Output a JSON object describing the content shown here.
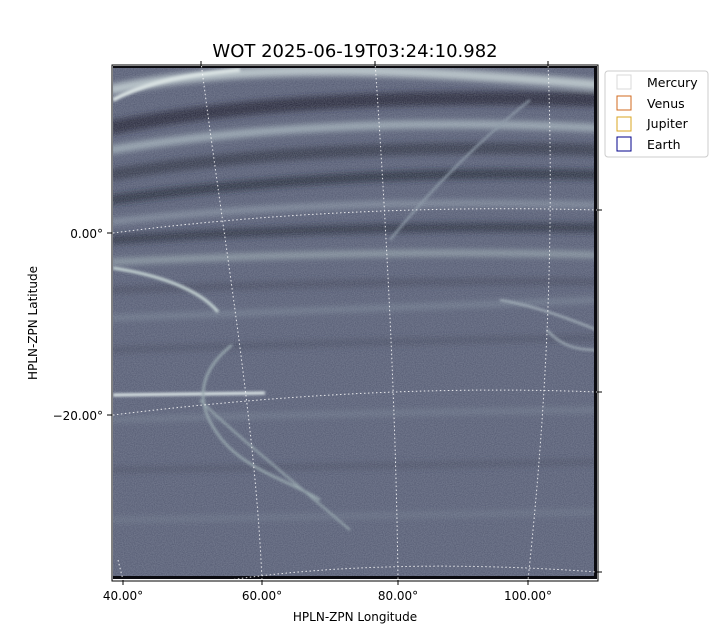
{
  "chart_data": {
    "type": "heatmap",
    "title": "WOT 2025-06-19T03:24:10.982",
    "xlabel": "HPLN-ZPN Longitude",
    "ylabel": "HPLN-ZPN Latitude",
    "x_ticks": [
      "40.00°",
      "60.00°",
      "80.00°",
      "100.00°"
    ],
    "y_ticks": [
      "0.00°",
      "−20.00°"
    ],
    "colormap": "bone",
    "grid": true,
    "legend_position": "upper-right outside",
    "legend": [
      {
        "name": "Mercury",
        "color": "#d8d8d8"
      },
      {
        "name": "Venus",
        "color": "#d2691e"
      },
      {
        "name": "Jupiter",
        "color": "#daa520"
      },
      {
        "name": "Earth",
        "color": "#00008b"
      }
    ]
  }
}
